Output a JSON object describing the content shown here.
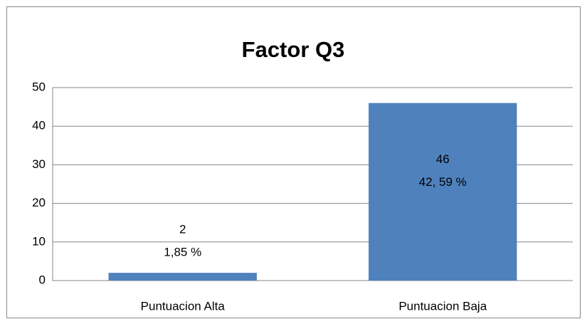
{
  "chart_data": {
    "type": "bar",
    "title": "Factor Q3",
    "categories": [
      "Puntuacion Alta",
      "Puntuacion Baja"
    ],
    "values": [
      2,
      46
    ],
    "percent_labels": [
      "1,85 %",
      "42, 59 %"
    ],
    "color": "#4f81bd",
    "ylim": [
      0,
      50
    ],
    "yticks": [
      0,
      10,
      20,
      30,
      40,
      50
    ],
    "grid": true
  }
}
